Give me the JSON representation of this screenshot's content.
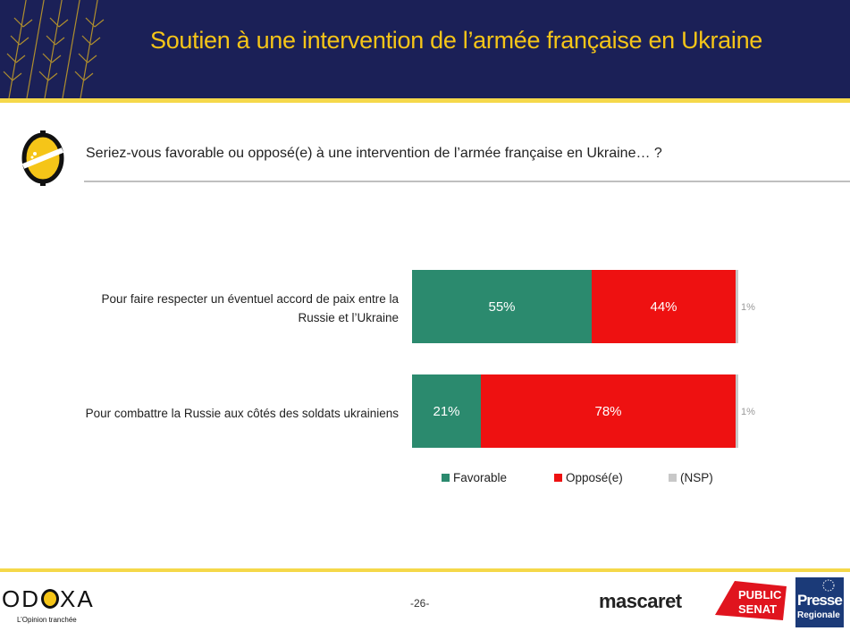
{
  "header": {
    "title": "Soutien à une intervention de l’armée française en Ukraine"
  },
  "question": {
    "text": "Seriez-vous favorable ou opposé(e) à une intervention de l’armée française en Ukraine… ?"
  },
  "chart_data": {
    "type": "bar",
    "orientation": "horizontal",
    "stacked": true,
    "categories": [
      "Pour faire respecter un éventuel accord de paix entre la Russie et l’Ukraine",
      "Pour combattre la Russie aux côtés des soldats ukrainiens"
    ],
    "series": [
      {
        "name": "Favorable",
        "color": "#2b8a6e",
        "values": [
          55,
          21
        ],
        "labels": [
          "55%",
          "21%"
        ]
      },
      {
        "name": "Opposé(e)",
        "color": "#ee1111",
        "values": [
          44,
          78
        ],
        "labels": [
          "44%",
          "78%"
        ]
      },
      {
        "name": "(NSP)",
        "color": "#c8c8c8",
        "values": [
          1,
          1
        ],
        "labels": [
          "1%",
          "1%"
        ]
      }
    ],
    "unit": "%",
    "legend_position": "bottom"
  },
  "rows": [
    {
      "label_line1": "Pour faire respecter un éventuel accord de paix entre la",
      "label_line2": "Russie et l’Ukraine"
    },
    {
      "label_line1": "Pour combattre la Russie aux côtés des soldats ukrainiens",
      "label_line2": ""
    }
  ],
  "footer": {
    "odoxa_brand_before": "OD",
    "odoxa_brand_after": "XA",
    "odoxa_tagline": "L’Opinion tranchée",
    "page_number": "-26-",
    "partner1": "mascaret",
    "partner2_line1": "PUBLIC",
    "partner2_line2": "SENAT",
    "partner3_line1": "Presse",
    "partner3_line2": "Regionale"
  },
  "colors": {
    "header_bg": "#1b2057",
    "title": "#f5c518",
    "stripe": "#f5d84a"
  }
}
